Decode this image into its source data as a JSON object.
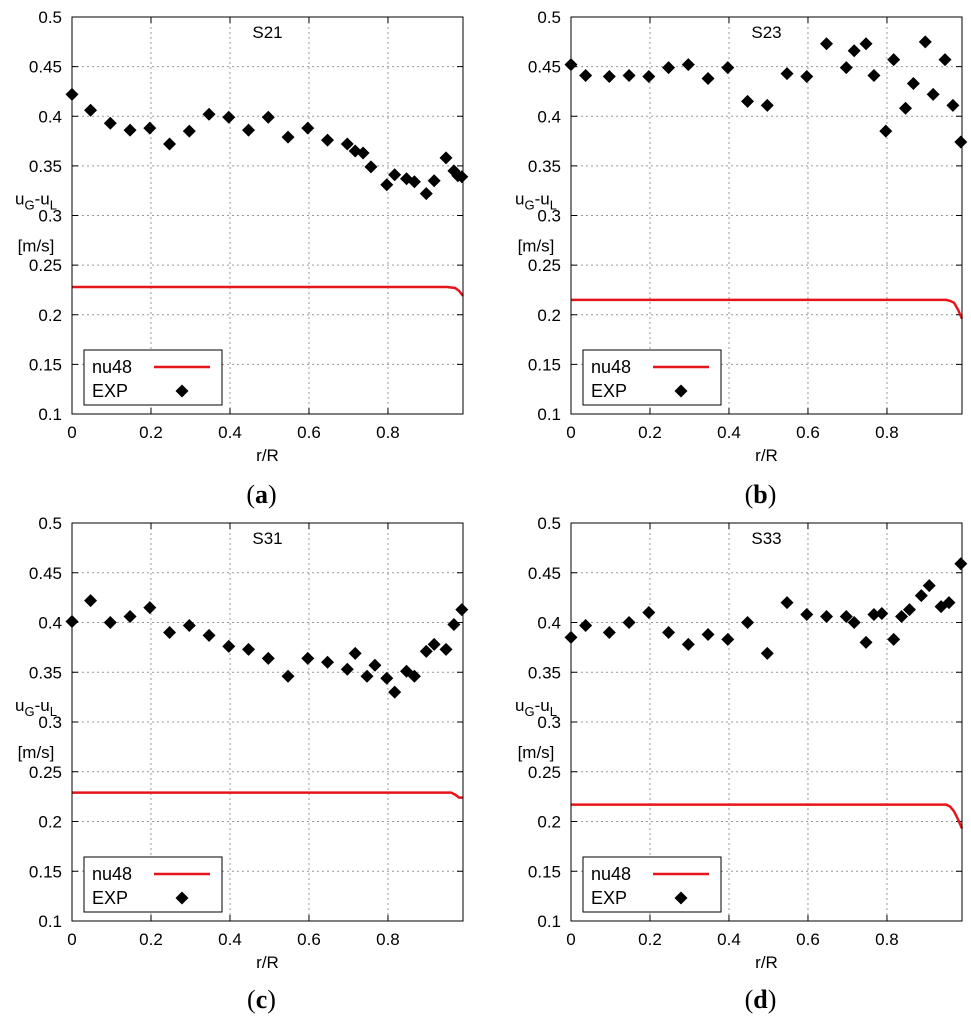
{
  "chart_data": [
    {
      "type": "scatter",
      "title": "S21",
      "caption_letter": "a",
      "xlabel": "r/R",
      "ylabel": "u_G-u_L",
      "ylabel_main": "u",
      "ylabel_sub1": "G",
      "ylabel_mid": "-u",
      "ylabel_sub2": "L",
      "yunit": "[m/s]",
      "xlim": [
        0,
        0.99
      ],
      "ylim": [
        0.1,
        0.5
      ],
      "xticks": [
        0,
        0.2,
        0.4,
        0.6,
        0.8
      ],
      "yticks": [
        0.1,
        0.15,
        0.2,
        0.25,
        0.3,
        0.35,
        0.4,
        0.45,
        0.5
      ],
      "grid": true,
      "legend_position": "bottom-left",
      "series": [
        {
          "name": "nu48",
          "type": "line",
          "color": "#e8141b",
          "x": [
            0,
            0.2,
            0.4,
            0.6,
            0.8,
            0.95,
            0.97,
            0.98,
            0.99
          ],
          "y": [
            0.228,
            0.228,
            0.228,
            0.228,
            0.228,
            0.228,
            0.227,
            0.224,
            0.219
          ]
        },
        {
          "name": "EXP",
          "type": "scatter",
          "color": "#000000",
          "marker": "diamond",
          "x": [
            0,
            0.047,
            0.097,
            0.147,
            0.197,
            0.247,
            0.297,
            0.347,
            0.397,
            0.447,
            0.497,
            0.547,
            0.597,
            0.647,
            0.697,
            0.717,
            0.737,
            0.757,
            0.797,
            0.817,
            0.847,
            0.867,
            0.897,
            0.917,
            0.947,
            0.967,
            0.977,
            0.987
          ],
          "y": [
            0.422,
            0.406,
            0.393,
            0.386,
            0.388,
            0.372,
            0.385,
            0.402,
            0.399,
            0.386,
            0.399,
            0.379,
            0.388,
            0.376,
            0.372,
            0.365,
            0.363,
            0.349,
            0.331,
            0.341,
            0.337,
            0.334,
            0.322,
            0.335,
            0.358,
            0.345,
            0.34,
            0.339
          ]
        }
      ]
    },
    {
      "type": "scatter",
      "title": "S23",
      "caption_letter": "b",
      "xlabel": "r/R",
      "ylabel": "u_G-u_L",
      "ylabel_main": "u",
      "ylabel_sub1": "G",
      "ylabel_mid": "-u",
      "ylabel_sub2": "L",
      "yunit": "[m/s]",
      "xlim": [
        0,
        0.99
      ],
      "ylim": [
        0.1,
        0.5
      ],
      "xticks": [
        0,
        0.2,
        0.4,
        0.6,
        0.8
      ],
      "yticks": [
        0.1,
        0.15,
        0.2,
        0.25,
        0.3,
        0.35,
        0.4,
        0.45,
        0.5
      ],
      "grid": true,
      "legend_position": "bottom-left",
      "series": [
        {
          "name": "nu48",
          "type": "line",
          "color": "#e8141b",
          "x": [
            0,
            0.2,
            0.4,
            0.6,
            0.8,
            0.95,
            0.96,
            0.97,
            0.98,
            0.99
          ],
          "y": [
            0.215,
            0.215,
            0.215,
            0.215,
            0.215,
            0.215,
            0.214,
            0.212,
            0.205,
            0.196
          ]
        },
        {
          "name": "EXP",
          "type": "scatter",
          "color": "#000000",
          "marker": "diamond",
          "x": [
            0,
            0.037,
            0.097,
            0.147,
            0.197,
            0.247,
            0.297,
            0.347,
            0.397,
            0.447,
            0.497,
            0.547,
            0.597,
            0.647,
            0.697,
            0.717,
            0.747,
            0.767,
            0.797,
            0.817,
            0.847,
            0.867,
            0.897,
            0.917,
            0.947,
            0.967,
            0.987
          ],
          "y": [
            0.452,
            0.441,
            0.44,
            0.441,
            0.44,
            0.449,
            0.452,
            0.438,
            0.449,
            0.415,
            0.411,
            0.443,
            0.44,
            0.473,
            0.449,
            0.466,
            0.473,
            0.441,
            0.385,
            0.457,
            0.408,
            0.433,
            0.475,
            0.422,
            0.457,
            0.411,
            0.374
          ]
        }
      ]
    },
    {
      "type": "scatter",
      "title": "S31",
      "caption_letter": "c",
      "xlabel": "r/R",
      "ylabel": "u_G-u_L",
      "ylabel_main": "u",
      "ylabel_sub1": "G",
      "ylabel_mid": "-u",
      "ylabel_sub2": "L",
      "yunit": "[m/s]",
      "xlim": [
        0,
        0.99
      ],
      "ylim": [
        0.1,
        0.5
      ],
      "xticks": [
        0,
        0.2,
        0.4,
        0.6,
        0.8
      ],
      "yticks": [
        0.1,
        0.15,
        0.2,
        0.25,
        0.3,
        0.35,
        0.4,
        0.45,
        0.5
      ],
      "grid": true,
      "legend_position": "bottom-left",
      "series": [
        {
          "name": "nu48",
          "type": "line",
          "color": "#e8141b",
          "x": [
            0,
            0.2,
            0.4,
            0.6,
            0.8,
            0.96,
            0.97,
            0.98,
            0.99
          ],
          "y": [
            0.229,
            0.229,
            0.229,
            0.229,
            0.229,
            0.229,
            0.227,
            0.224,
            0.224
          ]
        },
        {
          "name": "EXP",
          "type": "scatter",
          "color": "#000000",
          "marker": "diamond",
          "x": [
            0,
            0.047,
            0.097,
            0.147,
            0.197,
            0.247,
            0.297,
            0.347,
            0.397,
            0.447,
            0.497,
            0.547,
            0.597,
            0.647,
            0.697,
            0.717,
            0.747,
            0.767,
            0.797,
            0.817,
            0.847,
            0.867,
            0.897,
            0.917,
            0.947,
            0.967,
            0.987
          ],
          "y": [
            0.401,
            0.422,
            0.4,
            0.406,
            0.415,
            0.39,
            0.397,
            0.387,
            0.376,
            0.373,
            0.364,
            0.346,
            0.364,
            0.36,
            0.353,
            0.369,
            0.346,
            0.357,
            0.344,
            0.33,
            0.351,
            0.346,
            0.371,
            0.378,
            0.373,
            0.398,
            0.413
          ]
        }
      ]
    },
    {
      "type": "scatter",
      "title": "S33",
      "caption_letter": "d",
      "xlabel": "r/R",
      "ylabel": "u_G-u_L",
      "ylabel_main": "u",
      "ylabel_sub1": "G",
      "ylabel_mid": "-u",
      "ylabel_sub2": "L",
      "yunit": "[m/s]",
      "xlim": [
        0,
        0.99
      ],
      "ylim": [
        0.1,
        0.5
      ],
      "xticks": [
        0,
        0.2,
        0.4,
        0.6,
        0.8
      ],
      "yticks": [
        0.1,
        0.15,
        0.2,
        0.25,
        0.3,
        0.35,
        0.4,
        0.45,
        0.5
      ],
      "grid": true,
      "legend_position": "bottom-left",
      "series": [
        {
          "name": "nu48",
          "type": "line",
          "color": "#e8141b",
          "x": [
            0,
            0.2,
            0.4,
            0.6,
            0.8,
            0.95,
            0.96,
            0.97,
            0.98,
            0.99
          ],
          "y": [
            0.217,
            0.217,
            0.217,
            0.217,
            0.217,
            0.217,
            0.215,
            0.21,
            0.202,
            0.193
          ]
        },
        {
          "name": "EXP",
          "type": "scatter",
          "color": "#000000",
          "marker": "diamond",
          "x": [
            0,
            0.037,
            0.097,
            0.147,
            0.197,
            0.247,
            0.297,
            0.347,
            0.397,
            0.447,
            0.497,
            0.547,
            0.597,
            0.647,
            0.697,
            0.717,
            0.747,
            0.767,
            0.787,
            0.817,
            0.837,
            0.857,
            0.887,
            0.907,
            0.937,
            0.957,
            0.987
          ],
          "y": [
            0.385,
            0.397,
            0.39,
            0.4,
            0.41,
            0.39,
            0.378,
            0.388,
            0.383,
            0.4,
            0.369,
            0.42,
            0.408,
            0.406,
            0.406,
            0.4,
            0.38,
            0.408,
            0.409,
            0.383,
            0.406,
            0.413,
            0.427,
            0.437,
            0.416,
            0.42,
            0.459
          ]
        }
      ]
    }
  ]
}
